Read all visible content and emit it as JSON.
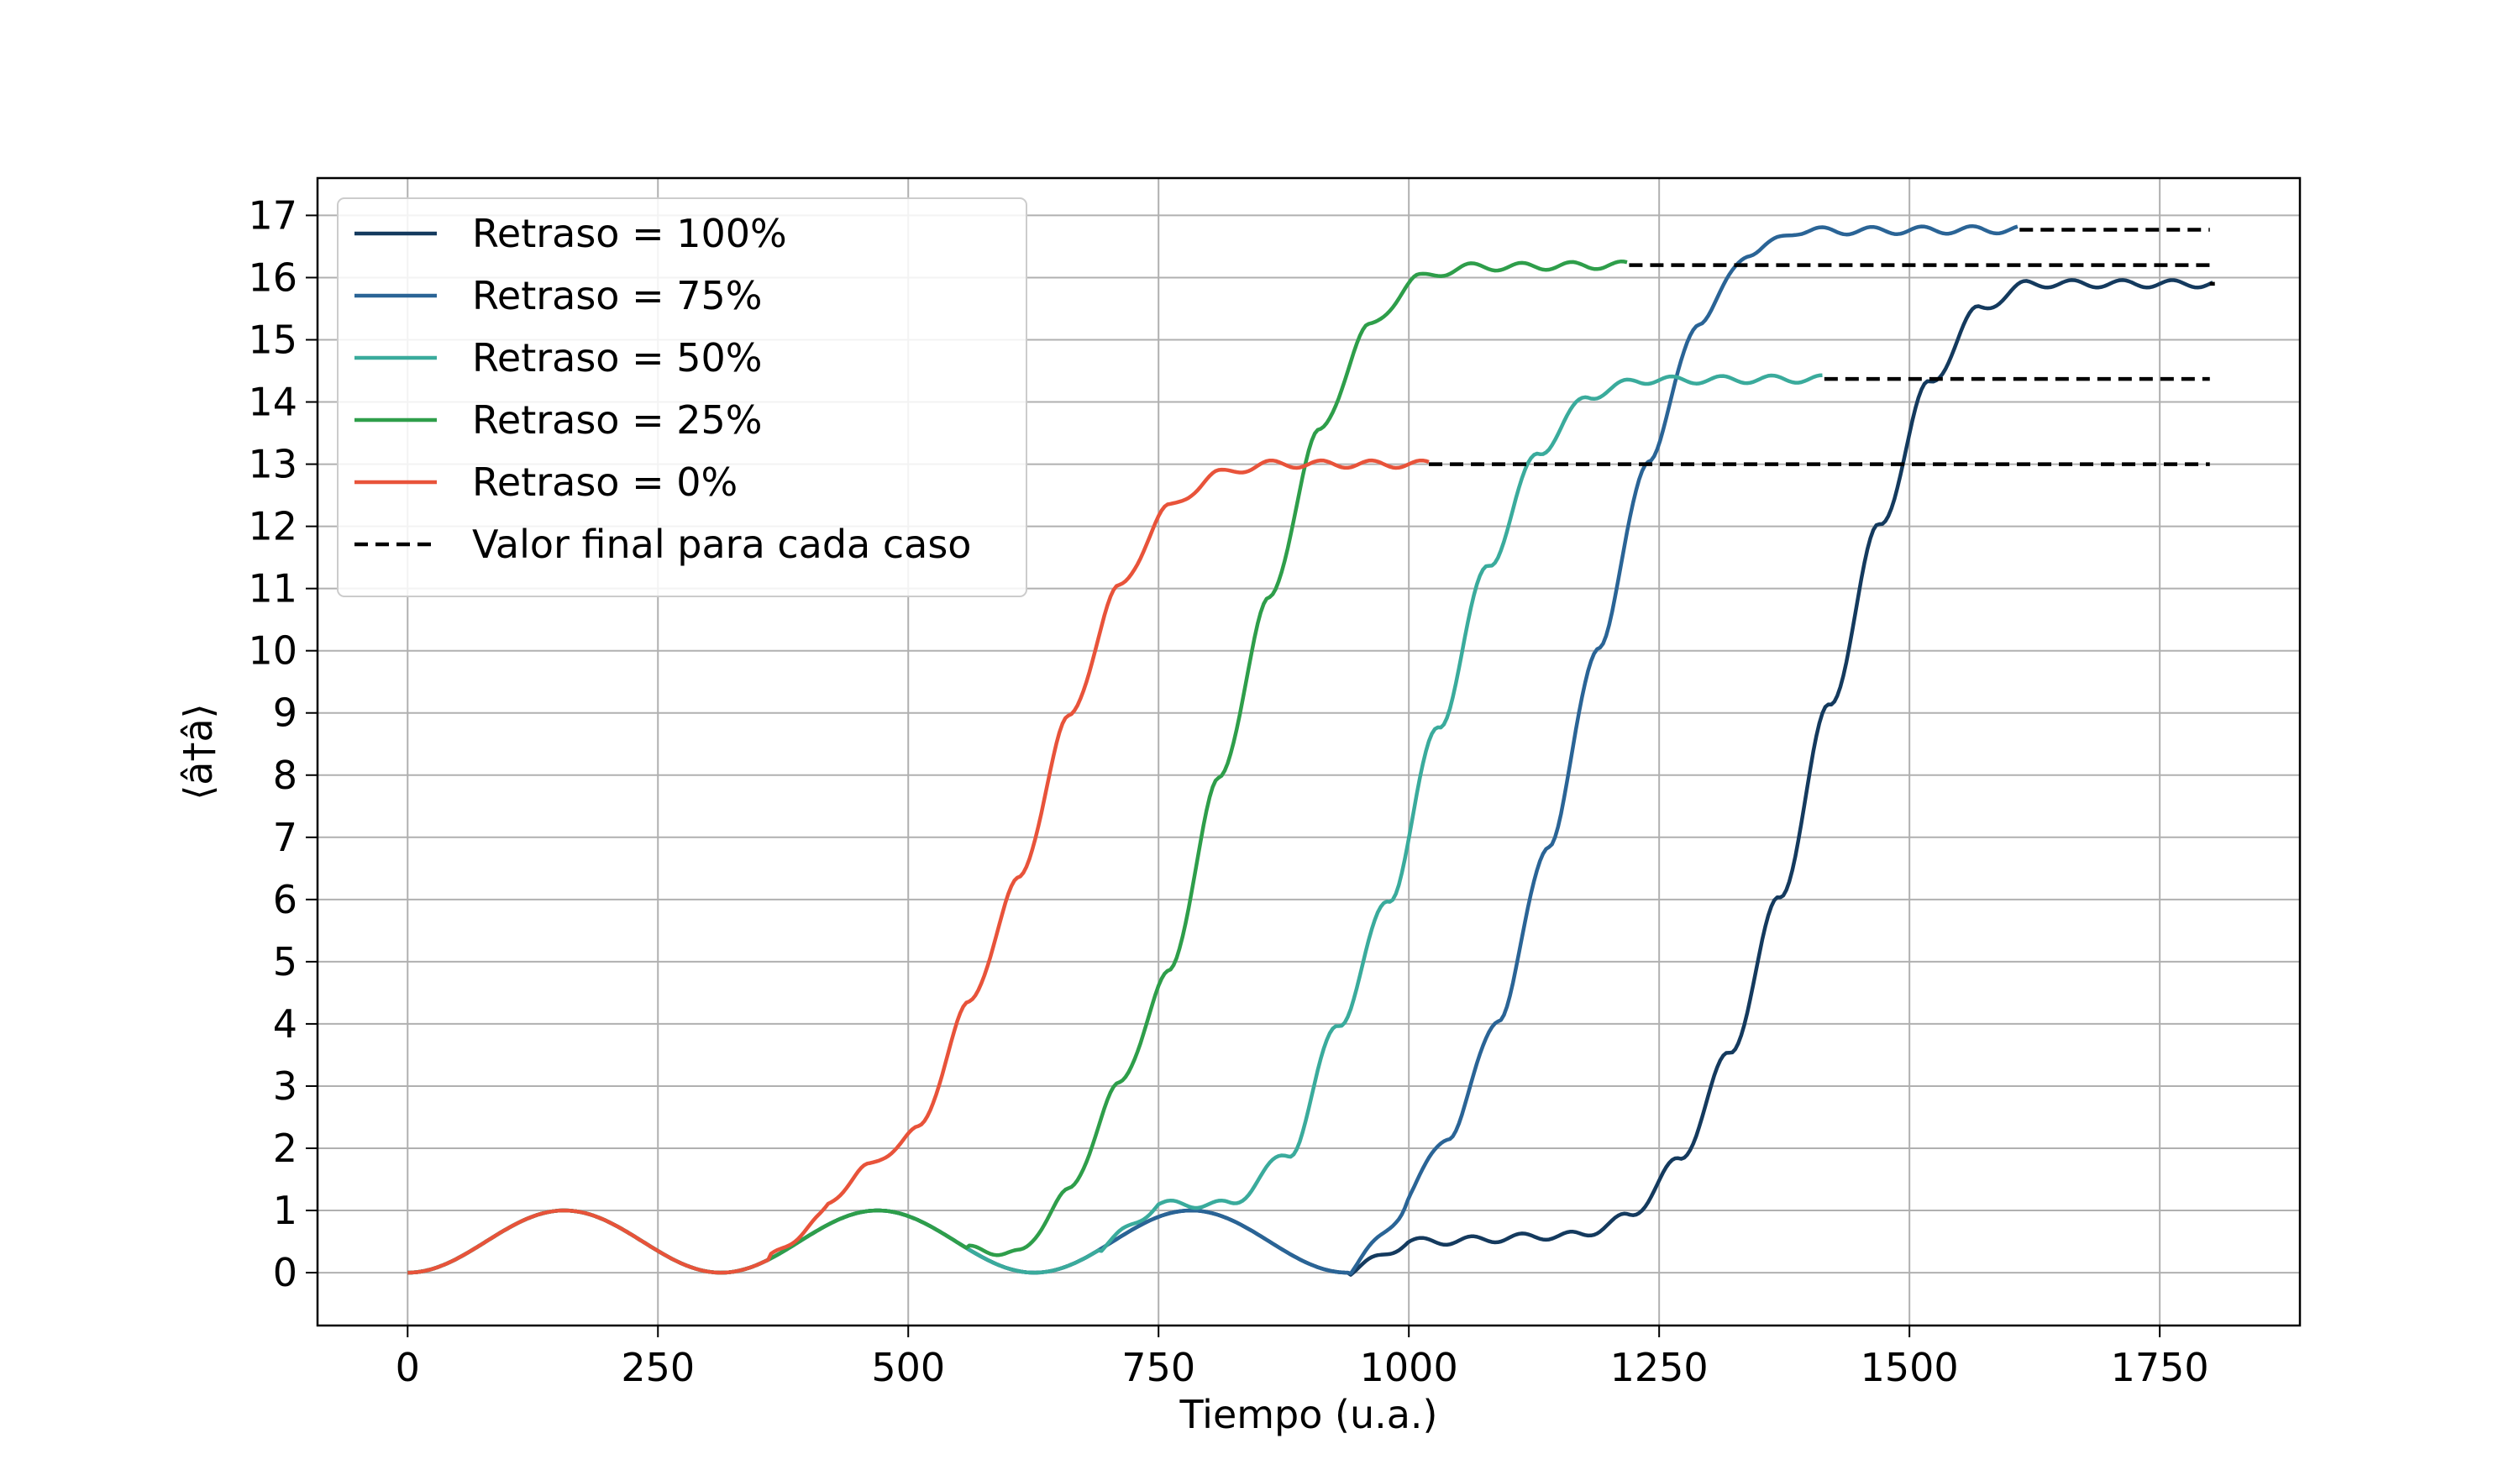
{
  "chart_data": {
    "type": "line",
    "xlabel": "Tiempo (u.a.)",
    "ylabel": "⟨â†â⟩",
    "xlim": [
      -90,
      1890
    ],
    "ylim": [
      -0.85,
      17.6
    ],
    "xticks": [
      0,
      250,
      500,
      750,
      1000,
      1250,
      1500,
      1750
    ],
    "yticks": [
      0,
      1,
      2,
      3,
      4,
      5,
      6,
      7,
      8,
      9,
      10,
      11,
      12,
      13,
      14,
      15,
      16,
      17
    ],
    "xtick_labels": [
      "0",
      "250",
      "500",
      "750",
      "1000",
      "1250",
      "1500",
      "1750"
    ],
    "ytick_labels": [
      "0",
      "1",
      "2",
      "3",
      "4",
      "5",
      "6",
      "7",
      "8",
      "9",
      "10",
      "11",
      "12",
      "13",
      "14",
      "15",
      "16",
      "17"
    ],
    "grid": true,
    "legend_position": "top-left",
    "oscillation": {
      "period": 313,
      "amplitude": 1.0
    },
    "series": [
      {
        "name": "Retraso = 100%",
        "color": "#143a5e",
        "steps": [
          {
            "x": 0,
            "y": 0
          },
          {
            "x": 1010,
            "y": 0.5
          },
          {
            "x": 1170,
            "y": 0.6
          },
          {
            "x": 1220,
            "y": 0.9
          },
          {
            "x": 1270,
            "y": 1.8
          },
          {
            "x": 1320,
            "y": 3.5
          },
          {
            "x": 1370,
            "y": 6.0
          },
          {
            "x": 1420,
            "y": 9.1
          },
          {
            "x": 1470,
            "y": 12.0
          },
          {
            "x": 1520,
            "y": 14.3
          },
          {
            "x": 1570,
            "y": 15.5
          },
          {
            "x": 1620,
            "y": 15.9
          },
          {
            "x": 1805,
            "y": 15.9
          }
        ],
        "osc_until": 940,
        "end_x": 1805,
        "final_value": 15.9
      },
      {
        "name": "Retraso = 75%",
        "color": "#2a6496",
        "steps": [
          {
            "x": 0,
            "y": 0
          },
          {
            "x": 990,
            "y": 1.1
          },
          {
            "x": 1040,
            "y": 2.2
          },
          {
            "x": 1090,
            "y": 4.1
          },
          {
            "x": 1140,
            "y": 6.9
          },
          {
            "x": 1190,
            "y": 10.1
          },
          {
            "x": 1240,
            "y": 13.1
          },
          {
            "x": 1290,
            "y": 15.3
          },
          {
            "x": 1340,
            "y": 16.4
          },
          {
            "x": 1390,
            "y": 16.75
          },
          {
            "x": 1610,
            "y": 16.77
          }
        ],
        "osc_until": 940,
        "end_x": 1610,
        "final_value": 16.77
      },
      {
        "name": "Retraso = 50%",
        "color": "#3aab9c",
        "steps": [
          {
            "x": 0,
            "y": 0
          },
          {
            "x": 760,
            "y": 1.1
          },
          {
            "x": 820,
            "y": 1.1
          },
          {
            "x": 880,
            "y": 1.9
          },
          {
            "x": 930,
            "y": 4.0
          },
          {
            "x": 980,
            "y": 6.0
          },
          {
            "x": 1030,
            "y": 8.8
          },
          {
            "x": 1080,
            "y": 11.4
          },
          {
            "x": 1130,
            "y": 13.2
          },
          {
            "x": 1180,
            "y": 14.1
          },
          {
            "x": 1230,
            "y": 14.35
          },
          {
            "x": 1415,
            "y": 14.37
          }
        ],
        "osc_until": 690,
        "end_x": 1415,
        "final_value": 14.37
      },
      {
        "name": "Retraso = 25%",
        "color": "#2e9e4a",
        "steps": [
          {
            "x": 0,
            "y": 0
          },
          {
            "x": 610,
            "y": 0.3
          },
          {
            "x": 660,
            "y": 1.3
          },
          {
            "x": 710,
            "y": 3.0
          },
          {
            "x": 760,
            "y": 4.8
          },
          {
            "x": 810,
            "y": 7.9
          },
          {
            "x": 860,
            "y": 10.8
          },
          {
            "x": 910,
            "y": 13.5
          },
          {
            "x": 960,
            "y": 15.2
          },
          {
            "x": 1010,
            "y": 16.0
          },
          {
            "x": 1060,
            "y": 16.17
          },
          {
            "x": 1220,
            "y": 16.2
          }
        ],
        "osc_until": 560,
        "end_x": 1220,
        "final_value": 16.2
      },
      {
        "name": "Retraso = 0%",
        "color": "#e8533a",
        "steps": [
          {
            "x": 0,
            "y": 0
          },
          {
            "x": 410,
            "y": 1.0
          },
          {
            "x": 460,
            "y": 1.7
          },
          {
            "x": 510,
            "y": 2.3
          },
          {
            "x": 560,
            "y": 4.3
          },
          {
            "x": 610,
            "y": 6.3
          },
          {
            "x": 660,
            "y": 8.9
          },
          {
            "x": 710,
            "y": 11.0
          },
          {
            "x": 760,
            "y": 12.3
          },
          {
            "x": 810,
            "y": 12.85
          },
          {
            "x": 860,
            "y": 13.0
          },
          {
            "x": 1020,
            "y": 13.0
          }
        ],
        "osc_until": 360,
        "end_x": 1020,
        "final_value": 13.0
      }
    ],
    "reference": {
      "name": "Valor final para cada caso",
      "color": "#000000",
      "style": "dashed",
      "x_end": 1800
    }
  }
}
